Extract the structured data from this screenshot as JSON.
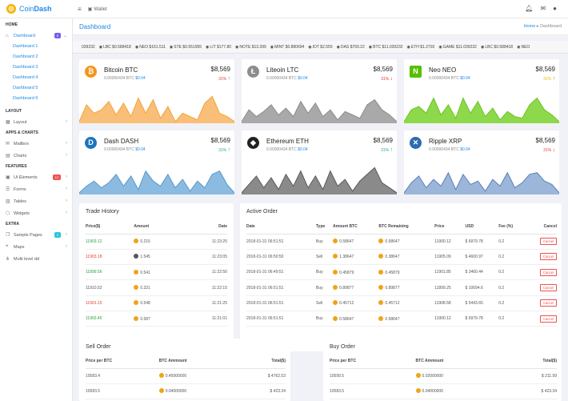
{
  "brand": {
    "prefix": "Coin",
    "suffix": "Dash"
  },
  "topnav": {
    "menu_icon": "hamburger-icon",
    "wallet_label": "Wallet"
  },
  "sidebar": {
    "sections": [
      "HOME",
      "LAYOUT",
      "APPS & CHARTS",
      "FEATURES",
      "EXTRA"
    ],
    "dashboard": {
      "label": "Dashboard",
      "badge": "5"
    },
    "dashboard_sub": [
      "Dashboard 1",
      "Dashboard 2",
      "Dashboard 3",
      "Dashboard 4",
      "Dashboard 5",
      "Dashboard 6"
    ],
    "layout": "Layout",
    "mailbox": "Mailbox",
    "charts": "Charts",
    "ui_elements": {
      "label": "Ui Elements",
      "badge": "12"
    },
    "forms": "Forms",
    "tables": "Tables",
    "widgets": "Widgets",
    "sample_pages": {
      "label": "Sample Pages",
      "badge": "3"
    },
    "maps": "Maps",
    "multilevel": "Multi level dd"
  },
  "page": {
    "title": "Dashboard",
    "crumb_home": "Home",
    "crumb_current": "Dashboard"
  },
  "ticker": [
    "039232",
    "LBC $0.588418",
    "NEO $161.511",
    "STE $0.551955",
    "LIT $177.80",
    "NOTE $13.399",
    "MINT $0.880694",
    "IOT $2.555",
    "DAS $769.22",
    "BTC $11.039232",
    "ETH $1.2792",
    "GAME $11.039232",
    "LBC $0.588418",
    "NEO"
  ],
  "colors": {
    "accent": "#1e88e5",
    "up": "#26a69a",
    "down": "#e53935",
    "bitcoin": "#f7931a",
    "litecoin": "#8c8c8c",
    "neo": "#58bf00",
    "dash": "#1c75bc",
    "ethereum": "#222222",
    "ripple": "#2c6bb0"
  },
  "coins": [
    {
      "name": "Bitcoin BTC",
      "icon": "bitcoin-icon",
      "glyph": "₿",
      "sub": "0.00000434 BTC",
      "subval": "$0.04",
      "price": "$8,569",
      "pct": "31%",
      "dir": "up",
      "trend_arrow": "↑"
    },
    {
      "name": "Liteoin LTC",
      "icon": "litecoin-icon",
      "glyph": "Ł",
      "sub": "0.00000434 BTC",
      "subval": "$0.04",
      "price": "$8,569",
      "pct": "31%",
      "dir": "down",
      "trend_arrow": "↓"
    },
    {
      "name": "Neo NEO",
      "icon": "neo-icon",
      "glyph": "N",
      "sub": "0.00000434 BTC",
      "subval": "$0.04",
      "price": "$8,569",
      "pct": "31%",
      "dir": "up",
      "trend_arrow": "↑"
    },
    {
      "name": "Dash DASH",
      "icon": "dash-icon",
      "glyph": "D",
      "sub": "0.00000434 BTC",
      "subval": "$0.04",
      "price": "$8,569",
      "pct": "31%",
      "dir": "up",
      "trend_arrow": "↑"
    },
    {
      "name": "Ethereum ETH",
      "icon": "ethereum-icon",
      "glyph": "◆",
      "sub": "0.00000434 BTC",
      "subval": "$0.04",
      "price": "$8,569",
      "pct": "31%",
      "dir": "up",
      "trend_arrow": "↑"
    },
    {
      "name": "Ripple XRP",
      "icon": "ripple-icon",
      "glyph": "✕",
      "sub": "0.00000434 BTC",
      "subval": "$0.04",
      "price": "$8,569",
      "pct": "31%",
      "dir": "down",
      "trend_arrow": "↓"
    }
  ],
  "trade_history": {
    "title": "Trade History",
    "headers": [
      "Price($)",
      "Amount",
      "Date"
    ],
    "rows": [
      {
        "price": "11903.12",
        "amount": "0.215",
        "date": "11:23:25",
        "dir": "up"
      },
      {
        "price": "11903.18",
        "amount": "1.545",
        "date": "11:23:05",
        "dir": "down"
      },
      {
        "price": "11899.56",
        "amount": "0.541",
        "date": "11:22:50",
        "dir": "up"
      },
      {
        "price": "11910.52",
        "amount": "0.321",
        "date": "11:22:15",
        "dir": "neutral"
      },
      {
        "price": "11901.15",
        "amount": "0.548",
        "date": "11:21:25",
        "dir": "down"
      },
      {
        "price": "11903.45",
        "amount": "0.587",
        "date": "11:21:01",
        "dir": "up"
      }
    ]
  },
  "active_order": {
    "title": "Active Order",
    "headers": [
      "Date",
      "Type",
      "Amount BTC",
      "BTC Remaining",
      "Price",
      "USD",
      "Fee (%)",
      "Cancel"
    ],
    "cancel_label": "Cancel",
    "rows": [
      {
        "date": "2018-01-31 06:51:51",
        "type": "Buy",
        "amount": "0.58647",
        "remaining": "0.58647",
        "price": "11900.12",
        "usd": "$ 6979.78",
        "fee": "0.2"
      },
      {
        "date": "2018-01-31 06:50:50",
        "type": "Sell",
        "amount": "1.38647",
        "remaining": "0.38647",
        "price": "11905.09",
        "usd": "$ 4600.97",
        "fee": "0.2"
      },
      {
        "date": "2018-01-31 06:49:51",
        "type": "Buy",
        "amount": "0.45879",
        "remaining": "0.45879",
        "price": "11901.85",
        "usd": "$ 3460.44",
        "fee": "0.2"
      },
      {
        "date": "2018-01-31 06:51:51",
        "type": "Buy",
        "amount": "0.89877",
        "remaining": "0.89877",
        "price": "11899.25",
        "usd": "$ 10694.6",
        "fee": "0.2"
      },
      {
        "date": "2018-01-31 06:51:51",
        "type": "Sell",
        "amount": "0.45712",
        "remaining": "0.45712",
        "price": "11908.58",
        "usd": "$ 5443.65",
        "fee": "0.2"
      },
      {
        "date": "2018-01-31 06:51:51",
        "type": "Buy",
        "amount": "0.58647",
        "remaining": "0.58647",
        "price": "11900.12",
        "usd": "$ 6979.78",
        "fee": "0.2"
      }
    ]
  },
  "sell_order": {
    "title": "Sell Order",
    "headers": [
      "Price per BTC",
      "BTC Ammount",
      "Total($)"
    ],
    "rows": [
      {
        "price": "10583.4",
        "amount": "0.45000000",
        "total": "$ 4762.53"
      },
      {
        "price": "10583.5",
        "amount": "0.04000000",
        "total": "$ 423.34"
      }
    ]
  },
  "buy_order": {
    "title": "Buy Order",
    "headers": [
      "Price per BTC",
      "BTC Ammount",
      "Total($)"
    ],
    "rows": [
      {
        "price": "10599.5",
        "amount": "0.02000000",
        "total": "$ 211.99"
      },
      {
        "price": "10583.5",
        "amount": "0.04000000",
        "total": "$ 423.34"
      }
    ]
  },
  "chart_data": [
    {
      "type": "area",
      "title": "Bitcoin BTC",
      "values": [
        5,
        55,
        30,
        40,
        65,
        25,
        60,
        20,
        75,
        30,
        70,
        15,
        50,
        5,
        30,
        20,
        10,
        60,
        80,
        30,
        20,
        5
      ]
    },
    {
      "type": "area",
      "title": "Liteoin LTC",
      "values": [
        5,
        40,
        20,
        35,
        55,
        25,
        45,
        20,
        65,
        30,
        60,
        20,
        40,
        10,
        35,
        25,
        15,
        55,
        70,
        40,
        25,
        5
      ]
    },
    {
      "type": "area",
      "title": "Neo NEO",
      "values": [
        5,
        40,
        50,
        30,
        75,
        25,
        55,
        15,
        75,
        30,
        65,
        20,
        45,
        10,
        35,
        20,
        15,
        55,
        75,
        40,
        25,
        5
      ]
    },
    {
      "type": "area",
      "title": "Dash DASH",
      "values": [
        5,
        25,
        40,
        20,
        35,
        60,
        25,
        55,
        15,
        70,
        40,
        25,
        60,
        20,
        45,
        10,
        40,
        20,
        60,
        70,
        30,
        5
      ]
    },
    {
      "type": "area",
      "title": "Ethereum ETH",
      "values": [
        5,
        30,
        55,
        20,
        50,
        15,
        60,
        25,
        70,
        20,
        55,
        15,
        70,
        25,
        45,
        10,
        40,
        60,
        80,
        35,
        20,
        5
      ]
    },
    {
      "type": "area",
      "title": "Ripple XRP",
      "values": [
        5,
        35,
        55,
        20,
        45,
        25,
        65,
        15,
        60,
        30,
        40,
        10,
        45,
        25,
        65,
        20,
        35,
        60,
        65,
        40,
        30,
        5
      ]
    }
  ]
}
